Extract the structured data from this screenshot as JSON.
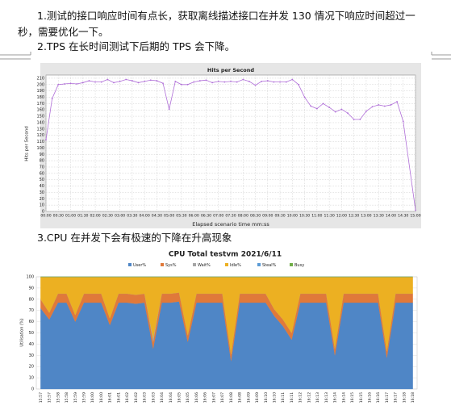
{
  "document": {
    "paragraphs": [
      "1.测试的接口响应时间有点长，获取离线描述接口在并发 130 情况下响应时间超过一秒，需要优化一下。",
      "2.TPS 在长时间测试下后期的 TPS 会下降。",
      "3.CPU 在并发下会有极速的下降在升高现象"
    ]
  },
  "chart_data": [
    {
      "type": "line",
      "title": "Hits per Second",
      "ylabel": "Hits per Second",
      "xlabel": "Elapsed scenario time mm:ss",
      "color": "#b06fd8",
      "grid": true,
      "x": [
        0,
        15,
        30,
        45,
        60,
        75,
        90,
        105,
        120,
        135,
        150,
        165,
        180,
        195,
        210,
        225,
        240,
        255,
        270,
        285,
        300,
        315,
        330,
        345,
        360,
        375,
        390,
        405,
        420,
        435,
        450,
        465,
        480,
        495,
        510,
        525,
        540,
        555,
        570,
        585,
        600,
        615,
        630,
        645,
        660,
        675,
        690,
        705,
        720,
        735,
        750,
        765,
        780,
        795,
        810,
        825,
        840,
        855,
        870,
        900
      ],
      "values": [
        113,
        178,
        200,
        201,
        202,
        201,
        203,
        206,
        204,
        204,
        208,
        203,
        205,
        208,
        206,
        203,
        205,
        207,
        206,
        202,
        161,
        205,
        200,
        200,
        204,
        206,
        207,
        203,
        205,
        204,
        205,
        204,
        208,
        205,
        199,
        205,
        206,
        204,
        204,
        204,
        208,
        200,
        180,
        166,
        162,
        170,
        164,
        157,
        161,
        155,
        145,
        145,
        158,
        165,
        168,
        166,
        168,
        173,
        142,
        2
      ],
      "xlim": [
        0,
        900
      ],
      "xticks": [
        {
          "value": 0,
          "label": "00:00"
        },
        {
          "value": 30,
          "label": "00:30"
        },
        {
          "value": 60,
          "label": "01:00"
        },
        {
          "value": 90,
          "label": "01:30"
        },
        {
          "value": 120,
          "label": "02:00"
        },
        {
          "value": 150,
          "label": "02:30"
        },
        {
          "value": 180,
          "label": "03:00"
        },
        {
          "value": 210,
          "label": "03:30"
        },
        {
          "value": 240,
          "label": "04:00"
        },
        {
          "value": 270,
          "label": "04:30"
        },
        {
          "value": 300,
          "label": "05:00"
        },
        {
          "value": 330,
          "label": "05:30"
        },
        {
          "value": 360,
          "label": "06:00"
        },
        {
          "value": 390,
          "label": "06:30"
        },
        {
          "value": 420,
          "label": "07:00"
        },
        {
          "value": 450,
          "label": "07:30"
        },
        {
          "value": 480,
          "label": "08:00"
        },
        {
          "value": 510,
          "label": "08:30"
        },
        {
          "value": 540,
          "label": "09:00"
        },
        {
          "value": 570,
          "label": "09:30"
        },
        {
          "value": 600,
          "label": "10:00"
        },
        {
          "value": 630,
          "label": "10:30"
        },
        {
          "value": 660,
          "label": "11:00"
        },
        {
          "value": 690,
          "label": "11:30"
        },
        {
          "value": 720,
          "label": "12:00"
        },
        {
          "value": 750,
          "label": "12:30"
        },
        {
          "value": 780,
          "label": "13:00"
        },
        {
          "value": 810,
          "label": "13:30"
        },
        {
          "value": 840,
          "label": "14:00"
        },
        {
          "value": 870,
          "label": "14:30"
        },
        {
          "value": 900,
          "label": "15:00"
        }
      ],
      "ylim": [
        0,
        215
      ],
      "yticks": [
        0,
        10,
        20,
        30,
        40,
        50,
        60,
        70,
        80,
        90,
        100,
        110,
        120,
        130,
        140,
        150,
        160,
        170,
        180,
        190,
        200,
        210
      ]
    },
    {
      "type": "stacked_area",
      "title": "CPU Total testvm  2021/6/11",
      "ylabel": "Utilisation (%)",
      "grid": true,
      "categories": [
        "15:57",
        "15:57",
        "15:58",
        "15:58",
        "15:59",
        "15:59",
        "16:00",
        "16:00",
        "16:01",
        "16:01",
        "16:02",
        "16:02",
        "16:03",
        "16:03",
        "16:04",
        "16:04",
        "16:05",
        "16:05",
        "16:06",
        "16:06",
        "16:07",
        "16:07",
        "16:08",
        "16:08",
        "16:09",
        "16:09",
        "16:10",
        "16:10",
        "16:11",
        "16:11",
        "16:12",
        "16:12",
        "16:13",
        "16:13",
        "16:14",
        "16:14",
        "16:15",
        "16:15",
        "16:16",
        "16:16",
        "16:17",
        "16:17",
        "16:18",
        "16:18"
      ],
      "ylim": [
        0,
        100
      ],
      "yticks": [
        0,
        10,
        20,
        30,
        40,
        50,
        60,
        70,
        80,
        90,
        100
      ],
      "series": [
        {
          "name": "User%",
          "color": "#4f86c6",
          "values": [
            72,
            62,
            77,
            77,
            60,
            77,
            77,
            77,
            57,
            77,
            77,
            76,
            77,
            36,
            77,
            77,
            78,
            42,
            77,
            77,
            77,
            77,
            25,
            77,
            77,
            77,
            77,
            65,
            56,
            44,
            77,
            77,
            77,
            77,
            30,
            77,
            77,
            77,
            77,
            77,
            28,
            77,
            77,
            77
          ]
        },
        {
          "name": "Sys%",
          "color": "#e0793a",
          "values": [
            8,
            6,
            8,
            8,
            6,
            8,
            8,
            8,
            6,
            8,
            8,
            8,
            8,
            6,
            8,
            8,
            8,
            6,
            8,
            8,
            8,
            8,
            6,
            8,
            8,
            8,
            8,
            6,
            6,
            6,
            8,
            8,
            8,
            8,
            6,
            8,
            8,
            8,
            8,
            8,
            6,
            8,
            8,
            8
          ]
        },
        {
          "name": "Wait%",
          "color": "#a5a5a5",
          "values": [
            0,
            0,
            0,
            0,
            0,
            0,
            0,
            0,
            0,
            0,
            0,
            0,
            0,
            3,
            0,
            0,
            0,
            0,
            0,
            0,
            0,
            0,
            0,
            0,
            0,
            0,
            0,
            0,
            0,
            0,
            0,
            0,
            0,
            0,
            0,
            0,
            0,
            0,
            0,
            0,
            0,
            0,
            0,
            0
          ]
        },
        {
          "name": "Idle%",
          "color": "#ecb022",
          "values": [
            20,
            32,
            15,
            15,
            34,
            15,
            15,
            15,
            37,
            15,
            15,
            16,
            15,
            55,
            15,
            15,
            14,
            52,
            15,
            15,
            15,
            15,
            69,
            15,
            15,
            15,
            15,
            29,
            38,
            50,
            15,
            15,
            15,
            15,
            64,
            15,
            15,
            15,
            15,
            15,
            66,
            15,
            15,
            15
          ]
        },
        {
          "name": "Steal%",
          "color": "#5b9bd5",
          "values": [
            0,
            0,
            0,
            0,
            0,
            0,
            0,
            0,
            0,
            0,
            0,
            0,
            0,
            0,
            0,
            0,
            0,
            0,
            0,
            0,
            0,
            0,
            0,
            0,
            0,
            0,
            0,
            0,
            0,
            0,
            0,
            0,
            0,
            0,
            0,
            0,
            0,
            0,
            0,
            0,
            0,
            0,
            0,
            0
          ]
        },
        {
          "name": "Busy",
          "color": "#70ad47",
          "values": [
            0,
            0,
            0,
            0,
            0,
            0,
            0,
            0,
            0,
            0,
            0,
            0,
            0,
            0,
            0,
            0,
            0,
            0,
            0,
            0,
            0,
            0,
            0,
            0,
            0,
            0,
            0,
            0,
            0,
            0,
            0,
            0,
            0,
            0,
            0,
            0,
            0,
            0,
            0,
            0,
            0,
            0,
            0,
            0
          ]
        }
      ]
    }
  ]
}
